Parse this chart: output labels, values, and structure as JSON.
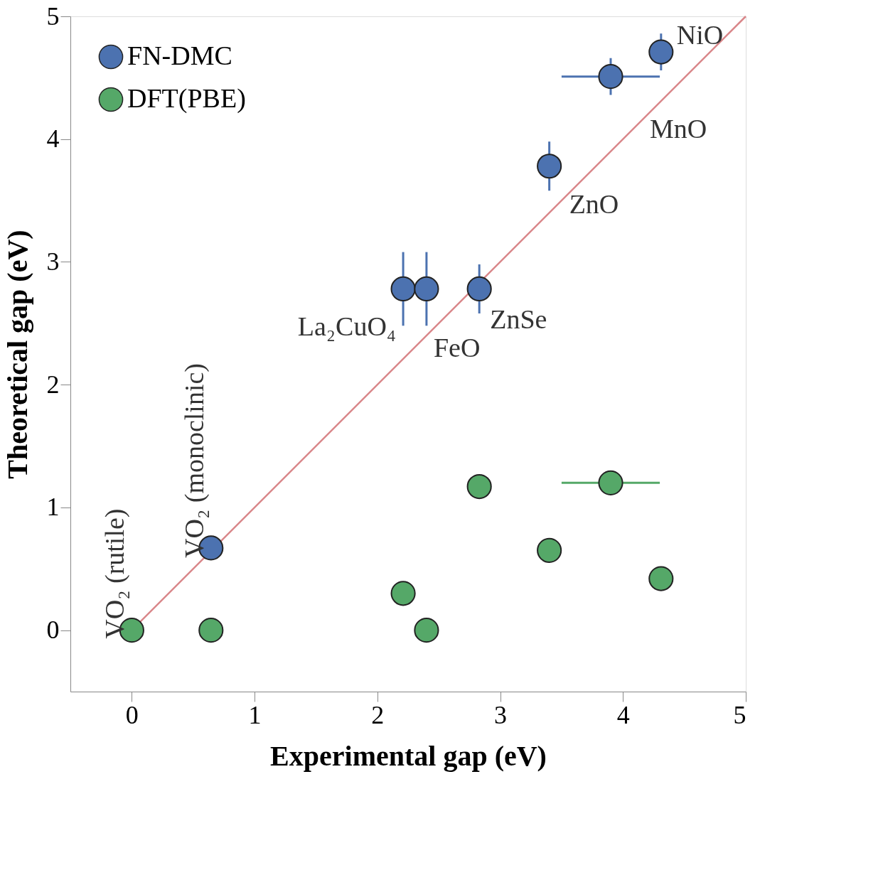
{
  "chart_data": {
    "type": "scatter",
    "xlabel": "Experimental gap (eV)",
    "ylabel": "Theoretical gap (eV)",
    "xlim": [
      -0.5,
      5
    ],
    "ylim": [
      -0.5,
      5
    ],
    "xticks": [
      0,
      1,
      2,
      3,
      4,
      5
    ],
    "yticks": [
      0,
      1,
      2,
      3,
      4,
      5
    ],
    "grid": false,
    "legend": "top left",
    "marker": "circle",
    "series": [
      {
        "name": "FN-DMC",
        "color": "#4c72b0",
        "x": [
          0.645,
          2.21,
          2.4,
          2.83,
          3.4,
          3.9,
          4.31
        ],
        "values": [
          0.67,
          2.78,
          2.78,
          2.78,
          3.78,
          4.51,
          4.71
        ],
        "errors": [
          null,
          0.3,
          0.3,
          0.2,
          0.2,
          0.15,
          0.15
        ],
        "xerrors": [
          null,
          null,
          null,
          null,
          null,
          0.4,
          null
        ]
      },
      {
        "name": "DFT(PBE)",
        "color": "#55a868",
        "x": [
          0,
          0.645,
          2.21,
          2.4,
          2.83,
          3.4,
          3.9,
          4.31
        ],
        "values": [
          0,
          0,
          0.3,
          0,
          1.17,
          0.65,
          1.2,
          0.42
        ],
        "xerrors": [
          null,
          null,
          null,
          null,
          null,
          null,
          0.4,
          null
        ]
      },
      {
        "type": "line",
        "marker": "none",
        "color": "#d9878a",
        "x": [
          0,
          5
        ],
        "values": [
          0,
          5
        ]
      }
    ],
    "annotations": [
      {
        "text": "VO₂ (rutile)",
        "x": 0,
        "y": 0
      },
      {
        "text": "VO₂ (monoclinic)",
        "x": 0.645,
        "y": 0.67
      },
      {
        "text": "La₂CuO₄",
        "x": 2.21,
        "y": 2.78
      },
      {
        "text": "FeO",
        "x": 2.4,
        "y": 2.78
      },
      {
        "text": "ZnSe",
        "x": 2.83,
        "y": 2.78
      },
      {
        "text": "ZnO",
        "x": 3.4,
        "y": 3.78
      },
      {
        "text": "MnO",
        "x": 3.9,
        "y": 4.51
      },
      {
        "text": "NiO",
        "x": 4.31,
        "y": 4.71
      }
    ]
  }
}
